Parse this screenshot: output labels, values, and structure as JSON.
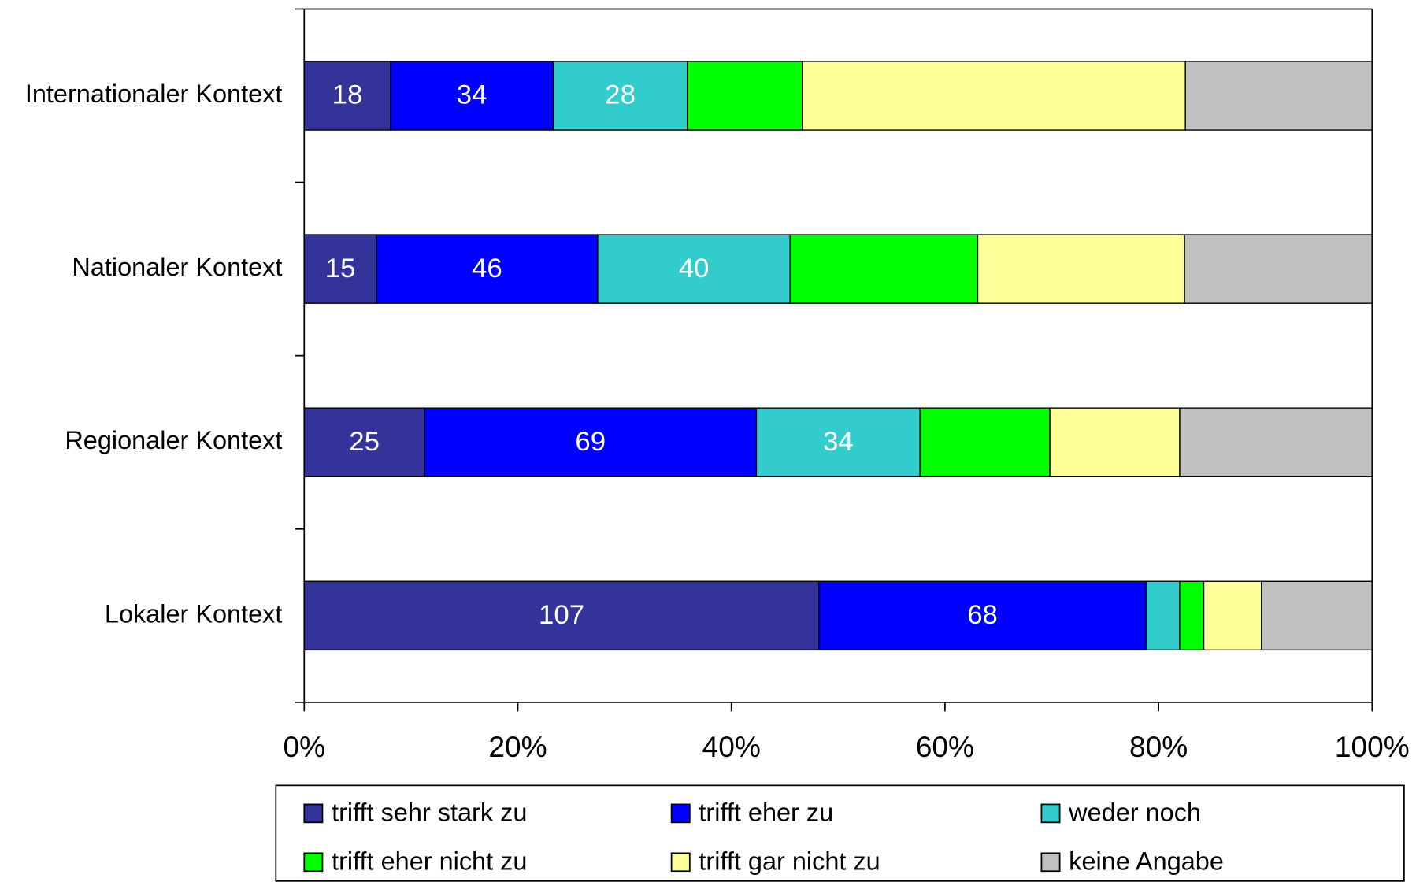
{
  "chart_data": {
    "type": "bar",
    "orientation": "horizontal",
    "stacked": "percent",
    "categories": [
      "Internationaler Kontext",
      "Nationaler Kontext",
      "Regionaler Kontext",
      "Lokaler Kontext"
    ],
    "series": [
      {
        "name": "trifft sehr stark zu",
        "color": "#333399",
        "data_labels": true,
        "values": [
          18,
          15,
          25,
          107
        ]
      },
      {
        "name": "trifft eher zu",
        "color": "#0000ff",
        "data_labels": true,
        "values": [
          34,
          46,
          69,
          68
        ]
      },
      {
        "name": "weder noch",
        "color": "#33cccc",
        "data_labels": true,
        "values": [
          28,
          40,
          34,
          7
        ]
      },
      {
        "name": "trifft eher nicht zu",
        "color": "#00ff00",
        "data_labels": false,
        "values": [
          24,
          39,
          27,
          5
        ]
      },
      {
        "name": "trifft gar nicht zu",
        "color": "#ffff99",
        "data_labels": false,
        "values": [
          80,
          43,
          27,
          12
        ]
      },
      {
        "name": "keine Angabe",
        "color": "#c0c0c0",
        "data_labels": false,
        "values": [
          39,
          39,
          40,
          23
        ]
      }
    ],
    "xlim": [
      0,
      100
    ],
    "xticks": [
      {
        "value": 0,
        "label": "0%"
      },
      {
        "value": 20,
        "label": "20%"
      },
      {
        "value": 40,
        "label": "40%"
      },
      {
        "value": 60,
        "label": "60%"
      },
      {
        "value": 80,
        "label": "80%"
      },
      {
        "value": 100,
        "label": "100%"
      }
    ],
    "legend": "bottom",
    "grid": false
  }
}
